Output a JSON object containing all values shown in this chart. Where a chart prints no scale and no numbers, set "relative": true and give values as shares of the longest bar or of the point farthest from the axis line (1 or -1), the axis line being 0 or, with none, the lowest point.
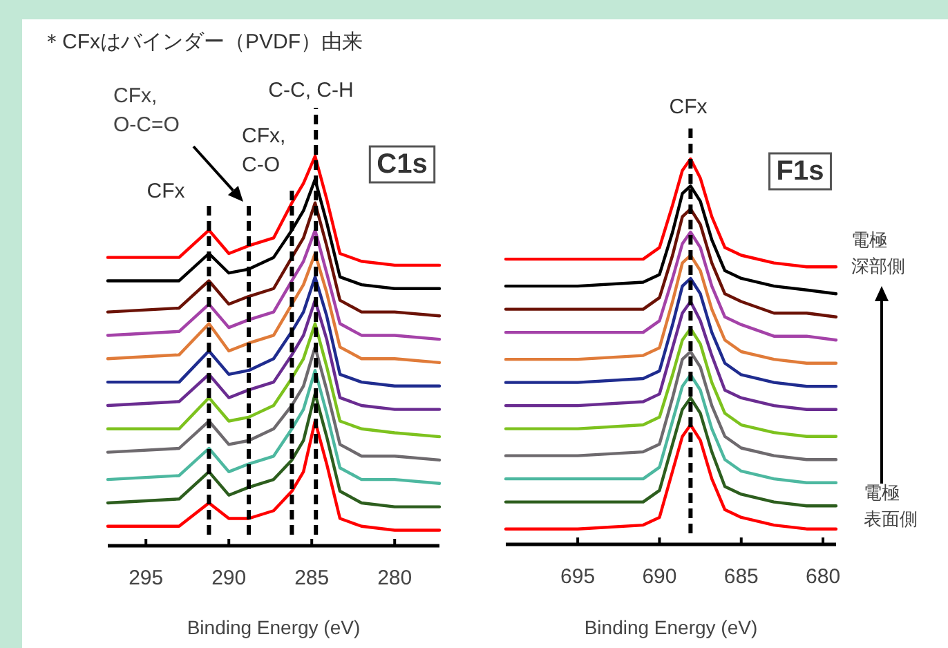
{
  "chart_data": [
    {
      "type": "line",
      "relative": true,
      "title": "＊CFxはバインダー（PVDF）由来",
      "xlabel": "Binding Energy (eV)",
      "xlim": [
        297.3,
        277.3
      ],
      "xticks": [
        295,
        290,
        285,
        280
      ],
      "annotations": [
        "C1s",
        "CFx,\nO-C=O"
      ],
      "x": [
        297.3,
        293,
        291.2,
        290.0,
        288.8,
        287.3,
        286.2,
        285.5,
        284.8,
        284.1,
        283.3,
        282,
        280,
        277.3
      ],
      "ref_lines": [
        {
          "axis": "x",
          "value": 291.2,
          "label": "CFx",
          "color": "#000000",
          "line_style": "dashed"
        },
        {
          "axis": "x",
          "value": 288.8,
          "color": "#000000",
          "line_style": "dashed"
        },
        {
          "axis": "x",
          "value": 286.2,
          "label": "CFx,\nC-O",
          "color": "#000000",
          "line_style": "dashed"
        },
        {
          "axis": "x",
          "value": 284.75,
          "label": "C-C, C-H",
          "color": "#000000",
          "line_style": "dashed"
        }
      ],
      "series": [
        {
          "color": "#ff0000",
          "values": [
            0.74,
            0.74,
            0.81,
            0.75,
            0.77,
            0.79,
            0.88,
            0.93,
            1,
            0.89,
            0.75,
            0.73,
            0.72,
            0.72
          ]
        },
        {
          "color": "#000000",
          "values": [
            0.68,
            0.68,
            0.75,
            0.7,
            0.71,
            0.74,
            0.81,
            0.86,
            0.94,
            0.83,
            0.69,
            0.67,
            0.66,
            0.66
          ]
        },
        {
          "color": "#6b1206",
          "values": [
            0.6,
            0.61,
            0.68,
            0.62,
            0.64,
            0.66,
            0.74,
            0.79,
            0.88,
            0.77,
            0.63,
            0.6,
            0.6,
            0.59
          ]
        },
        {
          "color": "#a442a8",
          "values": [
            0.54,
            0.55,
            0.62,
            0.56,
            0.58,
            0.6,
            0.68,
            0.73,
            0.81,
            0.7,
            0.57,
            0.54,
            0.54,
            0.53
          ]
        },
        {
          "color": "#e07b39",
          "values": [
            0.48,
            0.49,
            0.57,
            0.5,
            0.52,
            0.54,
            0.62,
            0.67,
            0.75,
            0.65,
            0.51,
            0.48,
            0.48,
            0.47
          ]
        },
        {
          "color": "#1f2c8f",
          "values": [
            0.42,
            0.42,
            0.5,
            0.44,
            0.45,
            0.48,
            0.55,
            0.6,
            0.69,
            0.59,
            0.44,
            0.42,
            0.41,
            0.41
          ]
        },
        {
          "color": "#6a2c91",
          "values": [
            0.36,
            0.37,
            0.44,
            0.38,
            0.4,
            0.42,
            0.49,
            0.54,
            0.63,
            0.53,
            0.38,
            0.36,
            0.35,
            0.35
          ]
        },
        {
          "color": "#7dc21e",
          "values": [
            0.3,
            0.3,
            0.38,
            0.32,
            0.33,
            0.36,
            0.43,
            0.48,
            0.57,
            0.46,
            0.32,
            0.3,
            0.29,
            0.28
          ]
        },
        {
          "color": "#6e6a6e",
          "values": [
            0.24,
            0.25,
            0.32,
            0.26,
            0.27,
            0.3,
            0.36,
            0.41,
            0.51,
            0.4,
            0.26,
            0.23,
            0.23,
            0.22
          ]
        },
        {
          "color": "#4db8a0",
          "values": [
            0.17,
            0.18,
            0.25,
            0.19,
            0.21,
            0.23,
            0.3,
            0.35,
            0.45,
            0.34,
            0.2,
            0.17,
            0.17,
            0.16
          ]
        },
        {
          "color": "#2d5e1e",
          "values": [
            0.11,
            0.12,
            0.19,
            0.13,
            0.15,
            0.17,
            0.22,
            0.27,
            0.39,
            0.28,
            0.14,
            0.11,
            0.1,
            0.1
          ]
        },
        {
          "color": "#ff0000",
          "values": [
            0.05,
            0.05,
            0.11,
            0.07,
            0.07,
            0.09,
            0.14,
            0.19,
            0.32,
            0.21,
            0.07,
            0.05,
            0.04,
            0.04
          ]
        }
      ]
    },
    {
      "type": "line",
      "relative": true,
      "xlabel": "Binding Energy (eV)",
      "xlim": [
        699.4,
        679.2
      ],
      "xticks": [
        695,
        690,
        685,
        680
      ],
      "annotations": [
        "F1s",
        "電極深部側",
        "電極表面側"
      ],
      "x": [
        699.4,
        695,
        691,
        690,
        689.2,
        688.6,
        688.1,
        687.5,
        686.8,
        686,
        685,
        683,
        681,
        679.2
      ],
      "ref_lines": [
        {
          "axis": "x",
          "value": 688.1,
          "label": "CFx",
          "color": "#000000",
          "line_style": "dashed"
        }
      ],
      "series": [
        {
          "color": "#ff0000",
          "values": [
            0.74,
            0.74,
            0.74,
            0.77,
            0.88,
            0.97,
            1,
            0.95,
            0.85,
            0.77,
            0.75,
            0.73,
            0.72,
            0.72
          ]
        },
        {
          "color": "#000000",
          "values": [
            0.67,
            0.67,
            0.68,
            0.7,
            0.81,
            0.91,
            0.93,
            0.89,
            0.79,
            0.71,
            0.69,
            0.67,
            0.66,
            0.65
          ]
        },
        {
          "color": "#6b1206",
          "values": [
            0.61,
            0.61,
            0.61,
            0.64,
            0.75,
            0.85,
            0.87,
            0.83,
            0.73,
            0.65,
            0.63,
            0.6,
            0.6,
            0.59
          ]
        },
        {
          "color": "#a442a8",
          "values": [
            0.55,
            0.55,
            0.55,
            0.58,
            0.69,
            0.78,
            0.81,
            0.77,
            0.67,
            0.59,
            0.57,
            0.54,
            0.54,
            0.53
          ]
        },
        {
          "color": "#e07b39",
          "values": [
            0.48,
            0.48,
            0.49,
            0.51,
            0.63,
            0.73,
            0.75,
            0.71,
            0.61,
            0.53,
            0.5,
            0.48,
            0.47,
            0.47
          ]
        },
        {
          "color": "#1f2c8f",
          "values": [
            0.42,
            0.42,
            0.43,
            0.45,
            0.57,
            0.67,
            0.69,
            0.65,
            0.55,
            0.47,
            0.44,
            0.42,
            0.41,
            0.41
          ]
        },
        {
          "color": "#6a2c91",
          "values": [
            0.36,
            0.36,
            0.37,
            0.39,
            0.51,
            0.6,
            0.63,
            0.58,
            0.49,
            0.4,
            0.38,
            0.36,
            0.35,
            0.35
          ]
        },
        {
          "color": "#7dc21e",
          "values": [
            0.3,
            0.3,
            0.31,
            0.33,
            0.44,
            0.53,
            0.56,
            0.52,
            0.42,
            0.34,
            0.31,
            0.29,
            0.28,
            0.28
          ]
        },
        {
          "color": "#6e6a6e",
          "values": [
            0.23,
            0.23,
            0.24,
            0.26,
            0.38,
            0.48,
            0.5,
            0.46,
            0.36,
            0.28,
            0.25,
            0.23,
            0.22,
            0.22
          ]
        },
        {
          "color": "#4db8a0",
          "values": [
            0.17,
            0.17,
            0.17,
            0.2,
            0.32,
            0.41,
            0.44,
            0.4,
            0.3,
            0.22,
            0.19,
            0.17,
            0.16,
            0.16
          ]
        },
        {
          "color": "#2d5e1e",
          "values": [
            0.11,
            0.11,
            0.11,
            0.14,
            0.26,
            0.35,
            0.38,
            0.34,
            0.24,
            0.15,
            0.13,
            0.11,
            0.1,
            0.1
          ]
        },
        {
          "color": "#ff0000",
          "values": [
            0.04,
            0.04,
            0.05,
            0.07,
            0.19,
            0.28,
            0.31,
            0.27,
            0.17,
            0.09,
            0.07,
            0.05,
            0.04,
            0.04
          ]
        }
      ]
    }
  ]
}
